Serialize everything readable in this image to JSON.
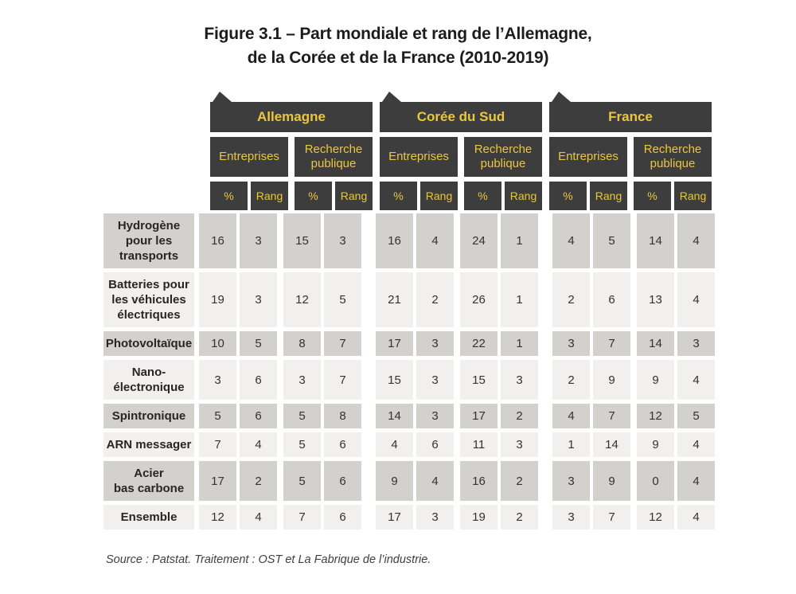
{
  "figure": {
    "title_line1": "Figure 3.1 – Part mondiale et rang de l’Allemagne,",
    "title_line2": "de la Corée et de la France (2010-2019)",
    "source": "Source : Patstat. Traitement : OST et La Fabrique de l’industrie."
  },
  "colors": {
    "header_background": "#3d3d3d",
    "header_text_yellow": "#ecc63e",
    "row_shade_dark": "#d3d1ce",
    "row_shade_light": "#f1f0ee"
  },
  "chart_data": {
    "type": "table",
    "title": "Figure 3.1 – Part mondiale et rang de l’Allemagne, de la Corée et de la France (2010-2019)",
    "column_groups": [
      "Allemagne",
      "Corée du Sud",
      "France"
    ],
    "column_subgroups": [
      "Entreprises",
      "Recherche publique"
    ],
    "column_measures": [
      "%",
      "Rang"
    ],
    "rows": [
      {
        "label": "Hydrogène\npour les\ntransports",
        "values": [
          16,
          3,
          15,
          3,
          16,
          4,
          24,
          1,
          4,
          5,
          14,
          4
        ]
      },
      {
        "label": "Batteries pour\nles véhicules\nélectriques",
        "values": [
          19,
          3,
          12,
          5,
          21,
          2,
          26,
          1,
          2,
          6,
          13,
          4
        ]
      },
      {
        "label": "Photovoltaïque",
        "values": [
          10,
          5,
          8,
          7,
          17,
          3,
          22,
          1,
          3,
          7,
          14,
          3
        ]
      },
      {
        "label": "Nano-\nélectronique",
        "values": [
          3,
          6,
          3,
          7,
          15,
          3,
          15,
          3,
          2,
          9,
          9,
          4
        ]
      },
      {
        "label": "Spintronique",
        "values": [
          5,
          6,
          5,
          8,
          14,
          3,
          17,
          2,
          4,
          7,
          12,
          5
        ]
      },
      {
        "label": "ARN messager",
        "values": [
          7,
          4,
          5,
          6,
          4,
          6,
          11,
          3,
          1,
          14,
          9,
          4
        ]
      },
      {
        "label": "Acier\nbas carbone",
        "values": [
          17,
          2,
          5,
          6,
          9,
          4,
          16,
          2,
          3,
          9,
          0,
          4
        ]
      },
      {
        "label": "Ensemble",
        "values": [
          12,
          4,
          7,
          6,
          17,
          3,
          19,
          2,
          3,
          7,
          12,
          4
        ]
      }
    ],
    "source": "Source : Patstat. Traitement : OST et La Fabrique de l’industrie."
  }
}
